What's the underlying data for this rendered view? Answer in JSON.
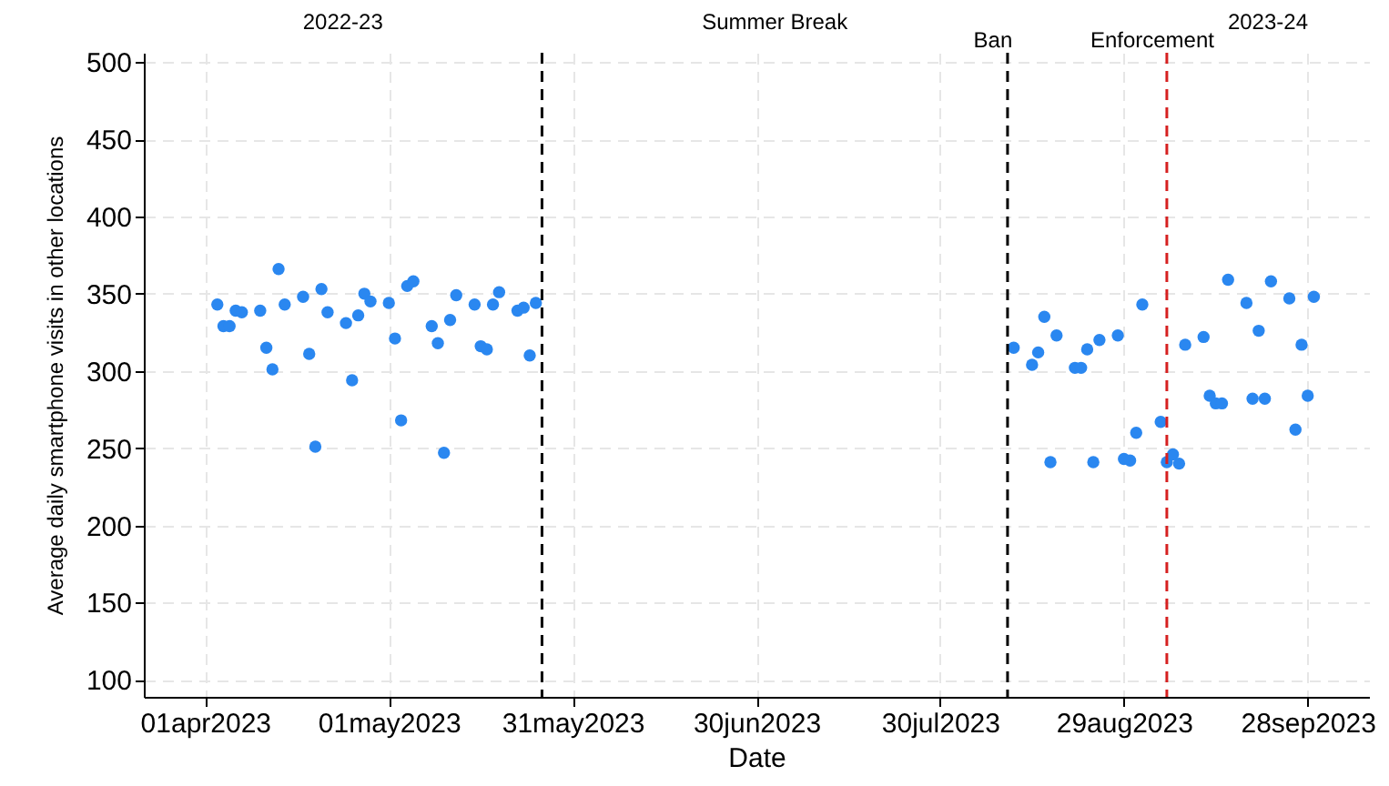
{
  "chart_data": {
    "type": "scatter",
    "xlabel": "Date",
    "ylabel": "Average daily smartphone visits in other locations",
    "x": [
      "2023-04-03",
      "2023-04-04",
      "2023-04-05",
      "2023-04-06",
      "2023-04-07",
      "2023-04-10",
      "2023-04-11",
      "2023-04-12",
      "2023-04-13",
      "2023-04-14",
      "2023-04-17",
      "2023-04-18",
      "2023-04-19",
      "2023-04-20",
      "2023-04-21",
      "2023-04-24",
      "2023-04-25",
      "2023-04-26",
      "2023-04-27",
      "2023-04-28",
      "2023-05-01",
      "2023-05-02",
      "2023-05-03",
      "2023-05-04",
      "2023-05-05",
      "2023-05-08",
      "2023-05-09",
      "2023-05-10",
      "2023-05-11",
      "2023-05-12",
      "2023-05-15",
      "2023-05-16",
      "2023-05-17",
      "2023-05-18",
      "2023-05-19",
      "2023-05-22",
      "2023-05-23",
      "2023-05-24",
      "2023-05-25",
      "2023-08-11",
      "2023-08-14",
      "2023-08-15",
      "2023-08-16",
      "2023-08-17",
      "2023-08-18",
      "2023-08-21",
      "2023-08-22",
      "2023-08-23",
      "2023-08-24",
      "2023-08-25",
      "2023-08-28",
      "2023-08-29",
      "2023-08-30",
      "2023-08-31",
      "2023-09-01",
      "2023-09-04",
      "2023-09-05",
      "2023-09-06",
      "2023-09-07",
      "2023-09-08",
      "2023-09-11",
      "2023-09-12",
      "2023-09-13",
      "2023-09-14",
      "2023-09-15",
      "2023-09-18",
      "2023-09-19",
      "2023-09-20",
      "2023-09-21",
      "2023-09-22",
      "2023-09-25",
      "2023-09-26",
      "2023-09-27",
      "2023-09-28",
      "2023-09-29"
    ],
    "series": [
      {
        "color": "#2a87f0",
        "values": [
          343,
          329,
          329,
          339,
          338,
          339,
          315,
          301,
          366,
          343,
          348,
          311,
          251,
          353,
          338,
          331,
          294,
          336,
          350,
          345,
          344,
          321,
          268,
          355,
          358,
          329,
          318,
          247,
          333,
          349,
          343,
          316,
          314,
          343,
          351,
          339,
          341,
          310,
          344,
          315,
          304,
          312,
          335,
          241,
          323,
          302,
          302,
          314,
          241,
          320,
          323,
          243,
          242,
          260,
          343,
          267,
          241,
          246,
          240,
          317,
          322,
          284,
          279,
          279,
          359,
          344,
          282,
          326,
          282,
          358,
          347,
          262,
          317,
          284,
          348
        ]
      }
    ],
    "xlim": [
      "2023-03-22",
      "2023-10-08"
    ],
    "xticks": [
      {
        "value": "2023-04-01",
        "label": "01apr2023"
      },
      {
        "value": "2023-05-01",
        "label": "01may2023"
      },
      {
        "value": "2023-05-31",
        "label": "31may2023"
      },
      {
        "value": "2023-06-30",
        "label": "30jun2023"
      },
      {
        "value": "2023-07-30",
        "label": "30jul2023"
      },
      {
        "value": "2023-08-29",
        "label": "29aug2023"
      },
      {
        "value": "2023-09-28",
        "label": "28sep2023"
      }
    ],
    "ylim": [
      89,
      506
    ],
    "yticks": [
      100,
      150,
      200,
      250,
      300,
      350,
      400,
      450,
      500
    ],
    "ref_lines": [
      {
        "axis": "x",
        "value": "2023-05-26",
        "color": "#000000",
        "line_style": "dashed"
      },
      {
        "axis": "x",
        "value": "2023-08-10",
        "label": "Ban",
        "color": "#000000",
        "line_style": "dashed"
      },
      {
        "axis": "x",
        "value": "2023-09-05",
        "label": "Enforcement",
        "color": "#d62020",
        "line_style": "dashed"
      }
    ],
    "annotations": [
      "2022-23",
      "Summer Break",
      "2023-24"
    ],
    "grid": true,
    "legend": false,
    "marker": "circle"
  }
}
